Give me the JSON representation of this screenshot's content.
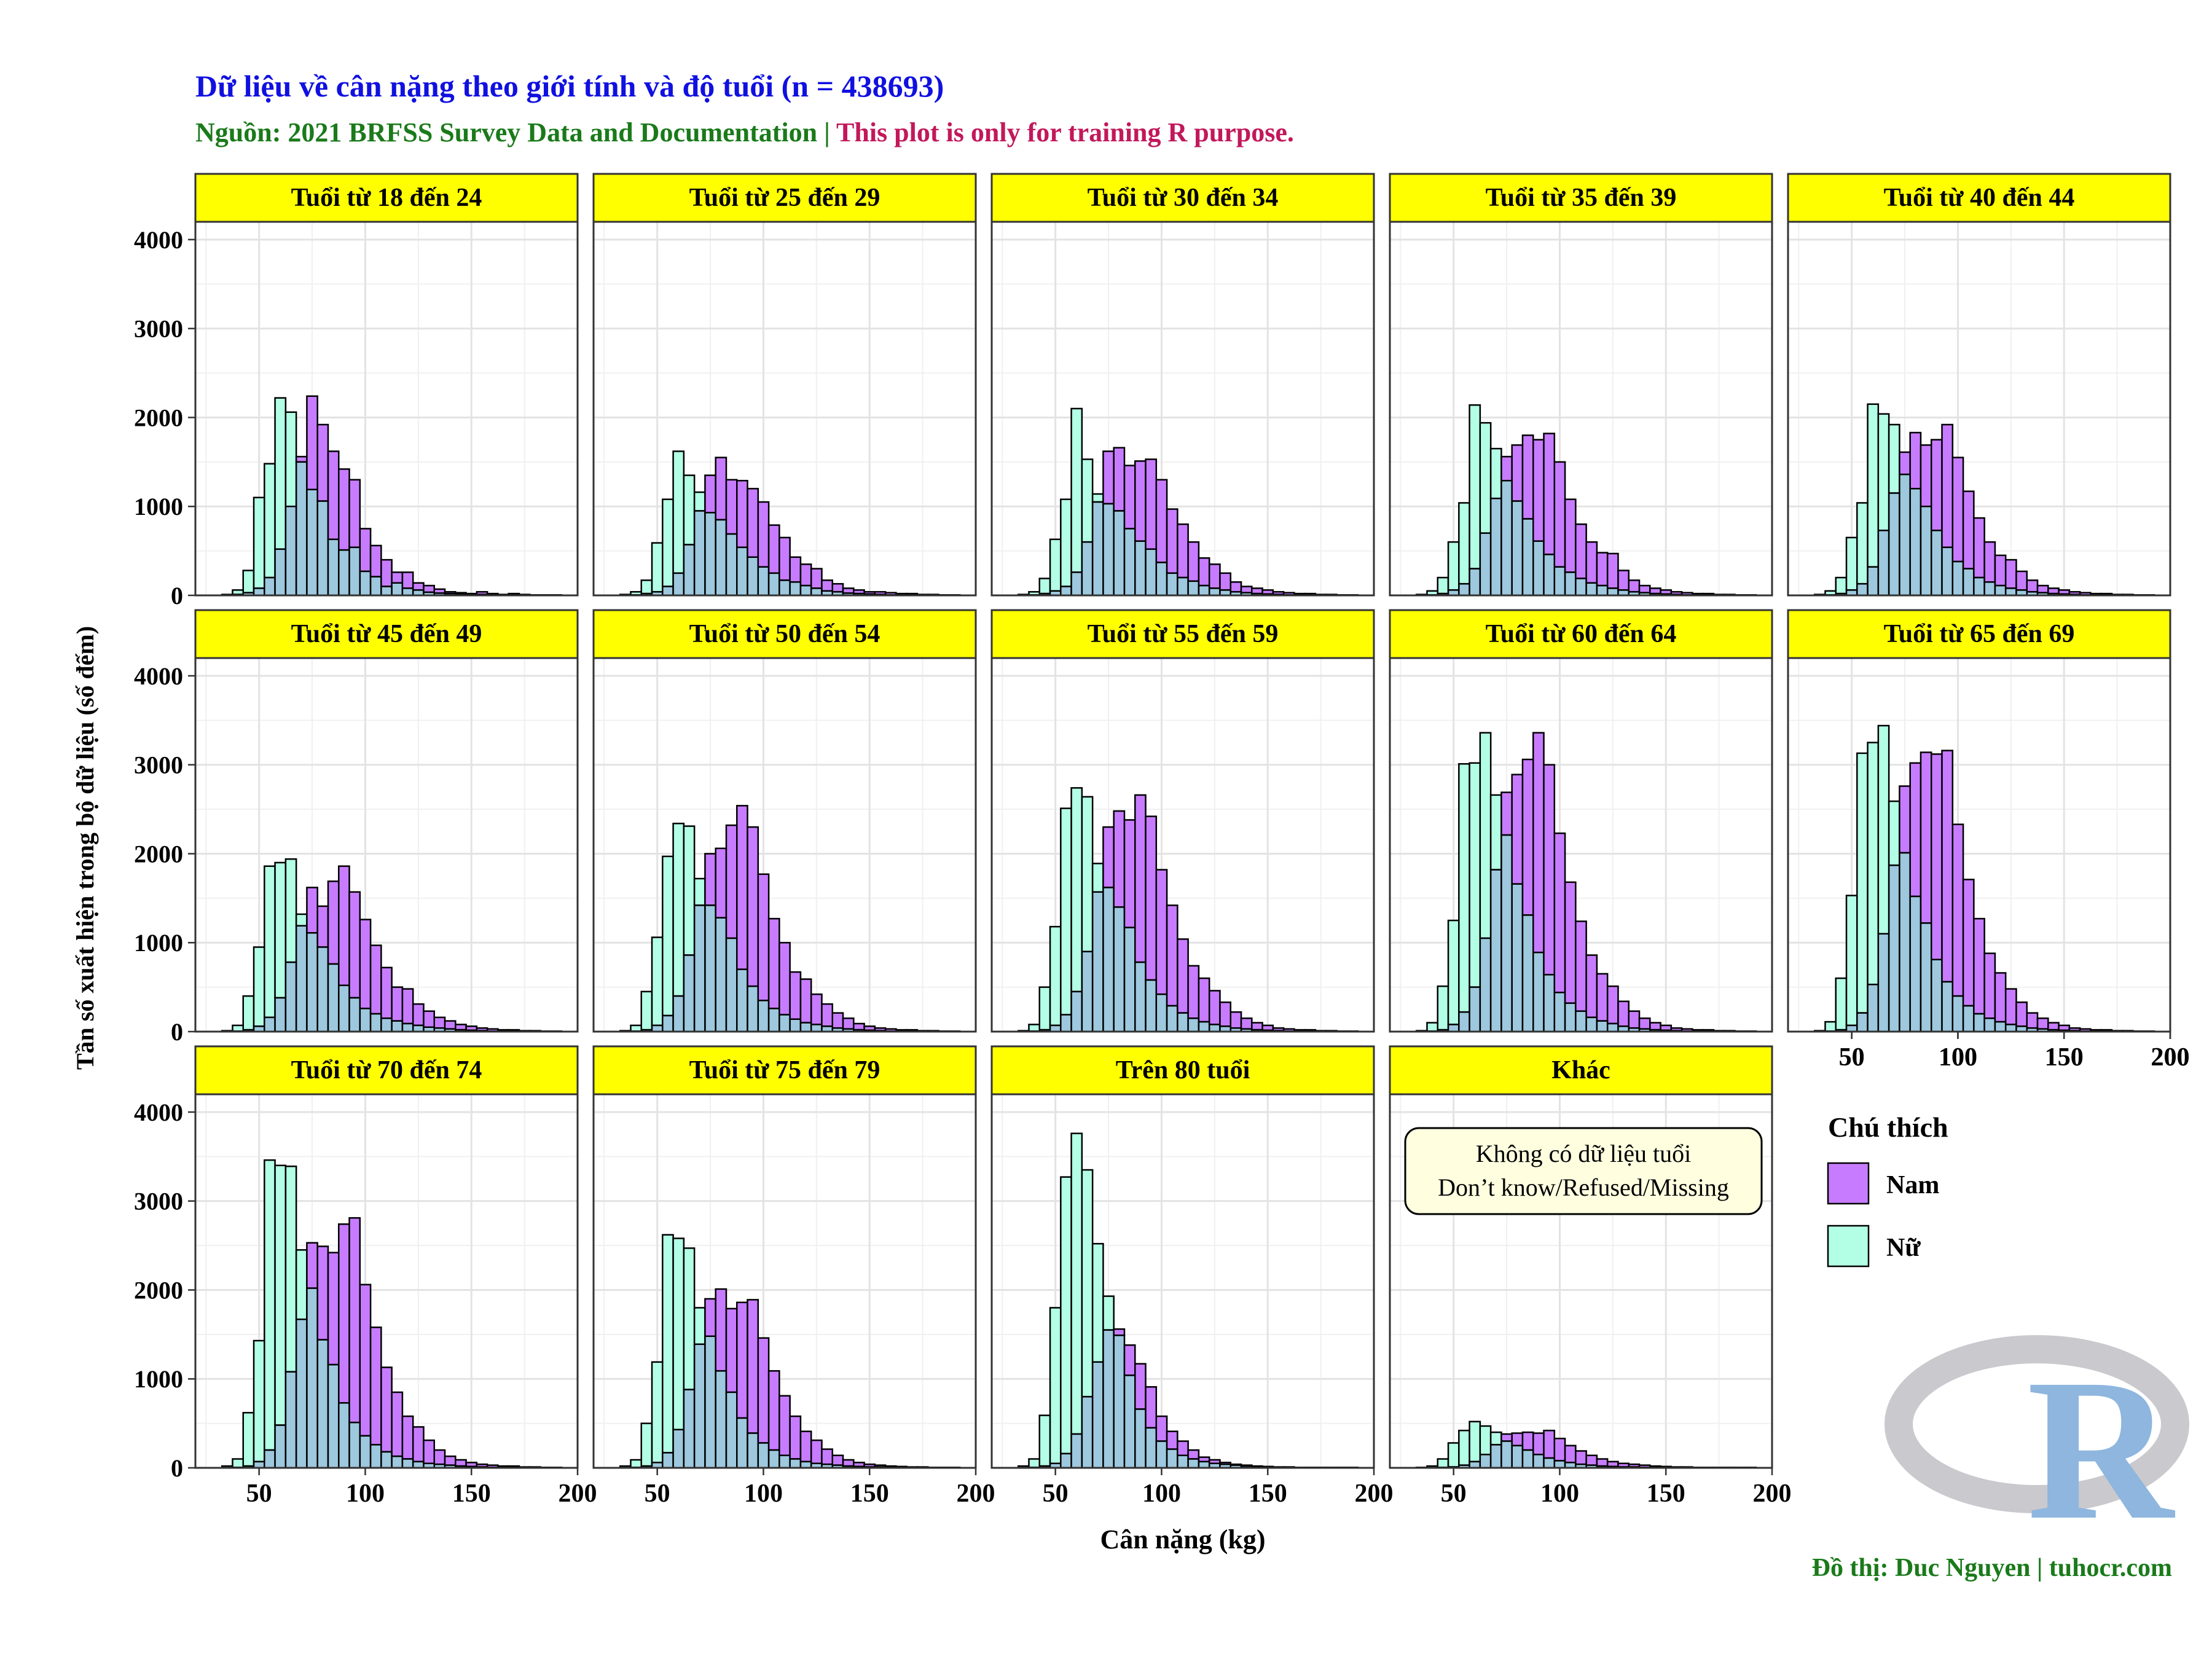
{
  "header": {
    "title": "Dữ liệu về cân nặng theo giới tính và độ tuổi (n = 438693)",
    "subtitle_source": "Nguồn: 2021 BRFSS Survey Data and Documentation | ",
    "subtitle_note": "This plot is only for training R purpose."
  },
  "axes": {
    "xlabel": "Cân nặng (kg)",
    "ylabel": "Tần số xuất hiện trong bộ dữ liệu (số đếm)"
  },
  "legend": {
    "title": "Chú thích",
    "items": [
      {
        "label": "Nam",
        "color": "#C77CFF"
      },
      {
        "label": "Nữ",
        "color": "#B3FFE6"
      }
    ]
  },
  "annotation": {
    "line1": "Không có dữ liệu tuổi",
    "line2": "Don’t know/Refused/Missing"
  },
  "caption": "Đồ thị: Duc Nguyen | tuhocr.com",
  "logo": {
    "letter": "R"
  },
  "colors": {
    "male": "#C77CFF",
    "female": "#B3FFE6",
    "overlap": "#9DC8DE",
    "strip": "#FFFF00",
    "title": "#1010E0",
    "source": "#1A7A1A",
    "note": "#C2185B"
  },
  "chart_data": {
    "type": "histogram",
    "bin_width": 5,
    "bin_start": 22.5,
    "xlim": [
      20,
      200
    ],
    "ylim": [
      0,
      4200
    ],
    "x_ticks": [
      50,
      100,
      150,
      200
    ],
    "y_ticks": [
      0,
      1000,
      2000,
      3000,
      4000
    ],
    "series_names": [
      "Nam",
      "Nữ"
    ],
    "panels": [
      {
        "label": "Tuổi từ 18 đến 24",
        "male": [
          0,
          0,
          0,
          10,
          30,
          80,
          200,
          520,
          1000,
          1560,
          2240,
          1920,
          1620,
          1420,
          1300,
          750,
          560,
          400,
          260,
          260,
          140,
          110,
          70,
          40,
          30,
          20,
          40,
          20,
          10,
          20,
          10,
          5,
          5,
          5
        ],
        "female": [
          0,
          0,
          10,
          60,
          280,
          1100,
          1480,
          2220,
          2060,
          1500,
          1190,
          1060,
          630,
          510,
          540,
          270,
          210,
          100,
          140,
          80,
          60,
          35,
          25,
          20,
          15,
          10,
          10,
          5,
          5,
          5,
          5,
          5,
          5,
          5
        ]
      },
      {
        "label": "Tuổi từ 25 đến 29",
        "male": [
          0,
          0,
          0,
          5,
          20,
          40,
          100,
          250,
          570,
          950,
          1350,
          1550,
          1300,
          1290,
          1200,
          1050,
          790,
          650,
          430,
          350,
          300,
          170,
          130,
          80,
          60,
          40,
          40,
          30,
          20,
          20,
          10,
          10,
          5,
          5
        ],
        "female": [
          0,
          0,
          10,
          40,
          170,
          590,
          1080,
          1620,
          1350,
          1160,
          930,
          850,
          690,
          540,
          430,
          320,
          250,
          170,
          150,
          110,
          80,
          50,
          40,
          25,
          20,
          15,
          10,
          5,
          5,
          5,
          5,
          5,
          5,
          5
        ]
      },
      {
        "label": "Tuổi từ 30 đến 34",
        "male": [
          0,
          0,
          0,
          5,
          20,
          50,
          100,
          260,
          600,
          1050,
          1620,
          1660,
          1460,
          1510,
          1530,
          1300,
          970,
          800,
          600,
          420,
          350,
          250,
          150,
          100,
          80,
          60,
          40,
          30,
          20,
          20,
          10,
          10,
          5,
          5
        ],
        "female": [
          0,
          0,
          10,
          40,
          190,
          630,
          1080,
          2100,
          1530,
          1140,
          1030,
          950,
          750,
          610,
          520,
          370,
          250,
          200,
          160,
          110,
          80,
          60,
          40,
          30,
          20,
          15,
          10,
          5,
          5,
          5,
          5,
          5,
          5,
          5
        ]
      },
      {
        "label": "Tuổi từ 35 đến 39",
        "male": [
          0,
          0,
          0,
          5,
          20,
          60,
          130,
          300,
          700,
          1090,
          1560,
          1690,
          1800,
          1750,
          1820,
          1500,
          1080,
          800,
          600,
          480,
          470,
          280,
          170,
          110,
          80,
          60,
          40,
          30,
          20,
          20,
          10,
          10,
          5,
          5
        ],
        "female": [
          0,
          0,
          10,
          50,
          200,
          600,
          1040,
          2140,
          1940,
          1650,
          1290,
          1060,
          860,
          610,
          460,
          320,
          260,
          190,
          140,
          110,
          80,
          60,
          40,
          30,
          20,
          15,
          10,
          5,
          5,
          5,
          5,
          5,
          5,
          5
        ]
      },
      {
        "label": "Tuổi từ 40 đến 44",
        "male": [
          0,
          0,
          0,
          5,
          20,
          60,
          130,
          320,
          730,
          1150,
          1610,
          1830,
          1690,
          1750,
          1920,
          1550,
          1170,
          870,
          600,
          450,
          400,
          270,
          170,
          110,
          80,
          60,
          40,
          30,
          20,
          20,
          10,
          10,
          5,
          5
        ],
        "female": [
          0,
          0,
          10,
          50,
          200,
          650,
          1040,
          2150,
          2040,
          1920,
          1360,
          1200,
          1000,
          730,
          540,
          380,
          300,
          200,
          150,
          110,
          80,
          60,
          40,
          30,
          20,
          15,
          10,
          5,
          5,
          5,
          5,
          5,
          5,
          5
        ]
      },
      {
        "label": "Tuổi từ 45 đến 49",
        "male": [
          0,
          0,
          0,
          5,
          20,
          60,
          160,
          380,
          780,
          1190,
          1620,
          1410,
          1690,
          1860,
          1570,
          1260,
          970,
          720,
          500,
          480,
          310,
          230,
          160,
          120,
          80,
          60,
          40,
          30,
          20,
          20,
          10,
          10,
          5,
          5
        ],
        "female": [
          0,
          0,
          10,
          70,
          400,
          950,
          1860,
          1900,
          1940,
          1320,
          1110,
          950,
          760,
          520,
          380,
          260,
          200,
          150,
          120,
          90,
          70,
          50,
          40,
          30,
          20,
          15,
          10,
          5,
          5,
          5,
          5,
          5,
          5,
          5
        ]
      },
      {
        "label": "Tuổi từ 50 đến 54",
        "male": [
          0,
          0,
          0,
          5,
          20,
          70,
          180,
          400,
          860,
          1420,
          2000,
          2060,
          2320,
          2540,
          2300,
          1770,
          1270,
          1000,
          670,
          590,
          420,
          310,
          210,
          150,
          90,
          60,
          40,
          30,
          20,
          20,
          10,
          10,
          5,
          5
        ],
        "female": [
          0,
          0,
          10,
          70,
          450,
          1060,
          1970,
          2340,
          2310,
          1720,
          1420,
          1280,
          1050,
          700,
          510,
          350,
          260,
          190,
          140,
          100,
          80,
          60,
          40,
          30,
          20,
          15,
          10,
          5,
          5,
          5,
          5,
          5,
          5,
          5
        ]
      },
      {
        "label": "Tuổi từ 55 đến 59",
        "male": [
          0,
          0,
          0,
          5,
          20,
          70,
          190,
          450,
          900,
          1570,
          2300,
          2480,
          2380,
          2660,
          2420,
          1820,
          1420,
          1040,
          740,
          600,
          460,
          330,
          220,
          150,
          100,
          70,
          40,
          30,
          20,
          20,
          10,
          10,
          5,
          5
        ],
        "female": [
          0,
          0,
          10,
          80,
          500,
          1180,
          2510,
          2740,
          2640,
          1890,
          1620,
          1400,
          1170,
          780,
          580,
          420,
          290,
          210,
          150,
          110,
          80,
          60,
          40,
          30,
          20,
          15,
          10,
          5,
          5,
          5,
          5,
          5,
          5,
          5
        ]
      },
      {
        "label": "Tuổi từ 60 đến 64",
        "male": [
          0,
          0,
          0,
          5,
          20,
          80,
          220,
          500,
          1050,
          1820,
          2690,
          2890,
          3060,
          3360,
          3000,
          2230,
          1680,
          1240,
          860,
          650,
          510,
          340,
          230,
          150,
          100,
          70,
          40,
          30,
          20,
          20,
          10,
          10,
          5,
          5
        ],
        "female": [
          0,
          0,
          10,
          100,
          510,
          1250,
          3010,
          3020,
          3360,
          2660,
          2210,
          1660,
          1310,
          890,
          640,
          440,
          320,
          230,
          160,
          120,
          90,
          60,
          40,
          30,
          20,
          15,
          10,
          5,
          5,
          5,
          5,
          5,
          5,
          5
        ]
      },
      {
        "label": "Tuổi từ 65 đến 69",
        "male": [
          0,
          0,
          0,
          5,
          20,
          70,
          210,
          530,
          1100,
          1870,
          2760,
          3020,
          3140,
          3120,
          3160,
          2330,
          1710,
          1270,
          880,
          660,
          480,
          330,
          210,
          150,
          100,
          70,
          40,
          30,
          20,
          20,
          10,
          10,
          5,
          5
        ],
        "female": [
          0,
          0,
          10,
          110,
          600,
          1530,
          3130,
          3250,
          3440,
          2590,
          2010,
          1520,
          1220,
          810,
          560,
          400,
          290,
          200,
          150,
          110,
          80,
          60,
          40,
          30,
          20,
          15,
          10,
          5,
          5,
          5,
          5,
          5,
          5,
          5
        ]
      },
      {
        "label": "Tuổi từ 70 đến 74",
        "male": [
          0,
          0,
          0,
          5,
          20,
          70,
          200,
          480,
          1080,
          1670,
          2530,
          2490,
          2420,
          2740,
          2810,
          2060,
          1580,
          1130,
          850,
          580,
          460,
          310,
          200,
          130,
          90,
          60,
          40,
          30,
          20,
          20,
          10,
          10,
          5,
          5
        ],
        "female": [
          0,
          0,
          20,
          100,
          620,
          1430,
          3460,
          3400,
          3390,
          2450,
          2020,
          1440,
          1160,
          730,
          510,
          360,
          260,
          180,
          130,
          100,
          70,
          50,
          40,
          30,
          20,
          15,
          10,
          5,
          5,
          5,
          5,
          5,
          5,
          5
        ]
      },
      {
        "label": "Tuổi từ 75 đến 79",
        "male": [
          0,
          0,
          0,
          5,
          20,
          60,
          170,
          430,
          880,
          1390,
          1900,
          2010,
          1790,
          1860,
          1890,
          1460,
          1090,
          810,
          580,
          410,
          310,
          210,
          140,
          90,
          60,
          40,
          30,
          20,
          15,
          10,
          10,
          5,
          5,
          5
        ],
        "female": [
          0,
          0,
          20,
          90,
          500,
          1190,
          2620,
          2580,
          2470,
          1800,
          1480,
          1090,
          850,
          560,
          390,
          280,
          200,
          140,
          100,
          70,
          50,
          40,
          30,
          20,
          15,
          10,
          10,
          5,
          5,
          5,
          5,
          5,
          5,
          5
        ]
      },
      {
        "label": "Trên 80 tuổi",
        "male": [
          0,
          0,
          0,
          5,
          20,
          50,
          160,
          380,
          800,
          1190,
          1550,
          1560,
          1380,
          1170,
          910,
          580,
          410,
          300,
          200,
          120,
          90,
          60,
          40,
          30,
          20,
          15,
          10,
          10,
          5,
          5,
          5,
          5,
          5,
          5
        ],
        "female": [
          0,
          0,
          20,
          100,
          590,
          1800,
          3270,
          3760,
          3350,
          2520,
          1930,
          1490,
          1040,
          660,
          450,
          300,
          210,
          140,
          100,
          70,
          50,
          40,
          30,
          20,
          15,
          10,
          10,
          5,
          5,
          5,
          5,
          5,
          5,
          5
        ]
      },
      {
        "label": "Khác",
        "male": [
          0,
          0,
          0,
          0,
          5,
          10,
          30,
          70,
          150,
          260,
          380,
          390,
          400,
          390,
          420,
          330,
          250,
          190,
          140,
          100,
          70,
          50,
          40,
          30,
          20,
          15,
          10,
          10,
          5,
          5,
          5,
          5,
          5,
          5
        ],
        "female": [
          0,
          0,
          5,
          20,
          100,
          280,
          420,
          520,
          470,
          400,
          300,
          250,
          200,
          150,
          110,
          80,
          60,
          40,
          30,
          20,
          15,
          10,
          10,
          5,
          5,
          5,
          5,
          5,
          5,
          5,
          5,
          5,
          5,
          5
        ]
      },
      {
        "label": "",
        "empty": true
      }
    ]
  }
}
